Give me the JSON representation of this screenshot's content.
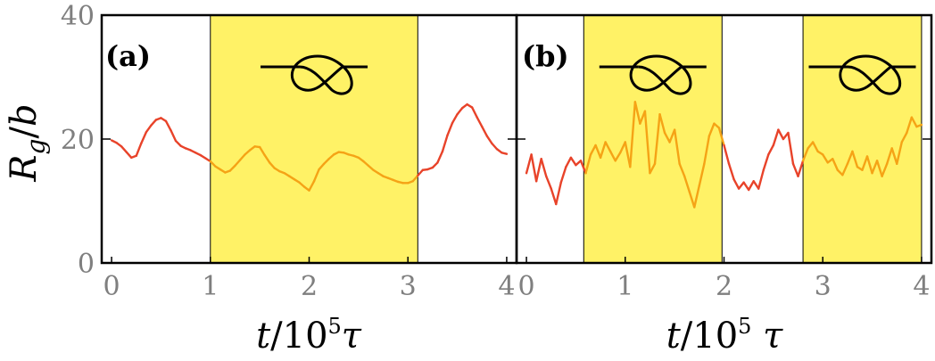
{
  "ylabel": "R_g/b",
  "xlabel": "t/10^5τ",
  "colors": {
    "unknotted": "#e8432a",
    "knotted": "#f5a316",
    "knot_band": "#fff266",
    "knot_icon": "#000000",
    "tick_text": "#7f7f7f"
  },
  "chart_data": [
    {
      "type": "line",
      "panel_label": "(a)",
      "xlim": [
        -0.1,
        4.1
      ],
      "ylim": [
        0,
        40
      ],
      "xticks": [
        0,
        1,
        2,
        3,
        4
      ],
      "yticks": [
        0,
        20,
        40
      ],
      "knotted_intervals": [
        [
          1.0,
          3.1
        ]
      ],
      "x": [
        0.0,
        0.05,
        0.1,
        0.15,
        0.2,
        0.25,
        0.3,
        0.35,
        0.4,
        0.45,
        0.5,
        0.55,
        0.6,
        0.65,
        0.7,
        0.75,
        0.8,
        0.85,
        0.9,
        0.95,
        1.0,
        1.05,
        1.1,
        1.15,
        1.2,
        1.25,
        1.3,
        1.35,
        1.4,
        1.45,
        1.5,
        1.55,
        1.6,
        1.65,
        1.7,
        1.75,
        1.8,
        1.85,
        1.9,
        1.95,
        2.0,
        2.05,
        2.1,
        2.15,
        2.2,
        2.25,
        2.3,
        2.35,
        2.4,
        2.45,
        2.5,
        2.55,
        2.6,
        2.65,
        2.7,
        2.75,
        2.8,
        2.85,
        2.9,
        2.95,
        3.0,
        3.05,
        3.1,
        3.15,
        3.2,
        3.25,
        3.3,
        3.35,
        3.4,
        3.45,
        3.5,
        3.55,
        3.6,
        3.65,
        3.7,
        3.75,
        3.8,
        3.85,
        3.9,
        3.95,
        4.0
      ],
      "y": [
        19.8,
        19.4,
        18.8,
        17.9,
        17.0,
        17.3,
        19.3,
        21.1,
        22.2,
        23.1,
        23.4,
        22.9,
        21.4,
        19.7,
        18.9,
        18.5,
        18.2,
        17.8,
        17.4,
        16.9,
        16.4,
        15.6,
        15.1,
        14.6,
        14.9,
        15.7,
        16.6,
        17.5,
        18.2,
        18.8,
        18.7,
        17.4,
        16.2,
        15.3,
        14.8,
        14.5,
        14.0,
        13.5,
        13.0,
        12.3,
        11.7,
        13.2,
        15.1,
        16.0,
        16.8,
        17.5,
        17.9,
        17.8,
        17.5,
        17.3,
        17.0,
        16.4,
        15.7,
        15.0,
        14.5,
        14.0,
        13.7,
        13.4,
        13.1,
        12.9,
        12.9,
        13.2,
        14.1,
        15.0,
        15.1,
        15.4,
        16.2,
        18.0,
        20.6,
        22.6,
        24.0,
        25.0,
        25.6,
        25.1,
        23.5,
        22.0,
        20.5,
        19.3,
        18.4,
        17.8,
        17.6
      ]
    },
    {
      "type": "line",
      "panel_label": "(b)",
      "xlim": [
        -0.1,
        4.1
      ],
      "ylim": [
        0,
        40
      ],
      "xticks": [
        0,
        1,
        2,
        3,
        4
      ],
      "yticks": [
        0,
        20,
        40
      ],
      "knotted_intervals": [
        [
          0.58,
          1.98
        ],
        [
          2.8,
          4.0
        ]
      ],
      "x": [
        0.0,
        0.05,
        0.1,
        0.15,
        0.2,
        0.25,
        0.3,
        0.35,
        0.4,
        0.45,
        0.5,
        0.55,
        0.6,
        0.65,
        0.7,
        0.75,
        0.8,
        0.85,
        0.9,
        0.95,
        1.0,
        1.05,
        1.1,
        1.15,
        1.2,
        1.25,
        1.3,
        1.35,
        1.4,
        1.45,
        1.5,
        1.55,
        1.6,
        1.65,
        1.7,
        1.75,
        1.8,
        1.85,
        1.9,
        1.95,
        2.0,
        2.05,
        2.1,
        2.15,
        2.2,
        2.25,
        2.3,
        2.35,
        2.4,
        2.45,
        2.5,
        2.55,
        2.6,
        2.65,
        2.7,
        2.75,
        2.8,
        2.85,
        2.9,
        2.95,
        3.0,
        3.05,
        3.1,
        3.15,
        3.2,
        3.25,
        3.3,
        3.35,
        3.4,
        3.45,
        3.5,
        3.55,
        3.6,
        3.65,
        3.7,
        3.75,
        3.8,
        3.85,
        3.9,
        3.95,
        4.0
      ],
      "y": [
        14.5,
        17.5,
        13.2,
        16.8,
        14.0,
        12.0,
        9.5,
        13.0,
        15.5,
        17.0,
        15.8,
        16.5,
        14.5,
        17.5,
        19.0,
        17.0,
        19.5,
        18.0,
        16.5,
        17.8,
        19.5,
        15.5,
        26.0,
        22.5,
        24.5,
        14.5,
        16.0,
        24.0,
        21.0,
        19.5,
        21.5,
        16.0,
        14.0,
        11.5,
        9.0,
        12.5,
        16.0,
        20.5,
        22.5,
        21.8,
        19.0,
        16.0,
        13.5,
        12.0,
        13.0,
        11.8,
        13.2,
        12.0,
        15.0,
        17.5,
        19.0,
        21.5,
        20.0,
        21.0,
        16.0,
        14.0,
        16.5,
        18.5,
        19.5,
        18.0,
        17.5,
        16.2,
        16.8,
        15.0,
        14.2,
        16.0,
        18.0,
        15.5,
        15.0,
        17.2,
        14.5,
        16.5,
        14.0,
        16.0,
        18.5,
        16.0,
        19.5,
        21.0,
        23.5,
        22.0,
        22.3
      ]
    }
  ]
}
